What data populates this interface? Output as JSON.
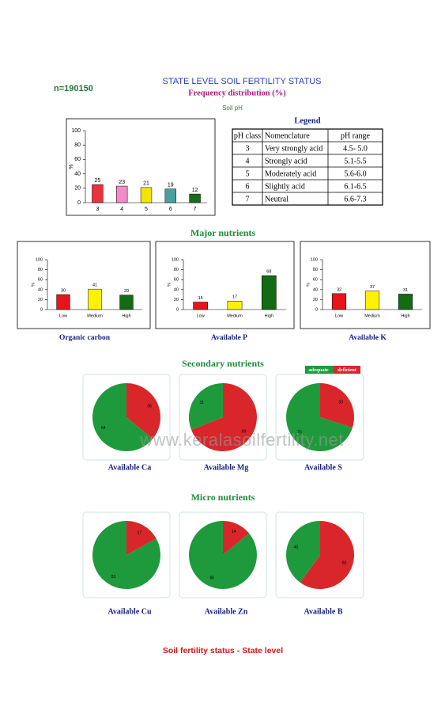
{
  "header": {
    "n": "n=190150",
    "title": "STATE LEVEL SOIL FERTILITY STATUS",
    "subtitle": "Frequency distribution (%)"
  },
  "legend": {
    "title": "Legend",
    "columns": [
      "pH class",
      "Nomenclature",
      "pH range"
    ],
    "rows": [
      [
        "3",
        "Very strongly acid",
        "4.5- 5.0"
      ],
      [
        "4",
        "Strongly acid",
        "5.1-5.5"
      ],
      [
        "5",
        "Moderately acid",
        "5.6-6.0"
      ],
      [
        "6",
        "Slightly acid",
        "6.1-6.5"
      ],
      [
        "7",
        "Neutral",
        "6.6-7.3"
      ]
    ]
  },
  "sections": [
    "Major nutrients",
    "Secondary nutrients",
    "Micro nutrients"
  ],
  "pie_legend": {
    "items": [
      "adequate",
      "deficient"
    ],
    "colors": [
      "#1e9a3c",
      "#d9262a"
    ]
  },
  "watermark": "www.keralasoilfertility.net",
  "footer": "Soil fertility status - State level",
  "chart_data": [
    {
      "type": "bar",
      "title": "Soil pH",
      "ylabel": "%",
      "categories": [
        "3",
        "4",
        "5",
        "6",
        "7"
      ],
      "values": [
        25,
        23,
        21,
        19,
        12
      ],
      "colors": [
        "#e8323c",
        "#f08cc8",
        "#f2e600",
        "#4aa0a0",
        "#1a6b1a"
      ],
      "ylim": [
        0,
        100
      ],
      "yticks": [
        0,
        20,
        40,
        60,
        80,
        100
      ]
    },
    {
      "type": "bar",
      "title": "Organic carbon",
      "ylabel": "%",
      "categories": [
        "Low",
        "Medium",
        "High"
      ],
      "values": [
        30,
        41,
        29
      ],
      "colors": [
        "#e8141a",
        "#fff200",
        "#136b13"
      ],
      "ylim": [
        0,
        100
      ],
      "yticks": [
        0,
        20,
        40,
        60,
        80,
        100
      ]
    },
    {
      "type": "bar",
      "title": "Available  P",
      "ylabel": "%",
      "categories": [
        "Low",
        "Medium",
        "High"
      ],
      "values": [
        15,
        17,
        68
      ],
      "colors": [
        "#e8141a",
        "#fff200",
        "#136b13"
      ],
      "ylim": [
        0,
        100
      ],
      "yticks": [
        0,
        20,
        40,
        60,
        80,
        100
      ]
    },
    {
      "type": "bar",
      "title": "Available  K",
      "ylabel": "%",
      "categories": [
        "Low",
        "Medium",
        "High"
      ],
      "values": [
        32,
        37,
        31
      ],
      "colors": [
        "#e8141a",
        "#fff200",
        "#136b13"
      ],
      "ylim": [
        0,
        100
      ],
      "yticks": [
        0,
        20,
        40,
        60,
        80,
        100
      ]
    },
    {
      "type": "pie",
      "title": "Available  Ca",
      "values": [
        64,
        36
      ]
    },
    {
      "type": "pie",
      "title": "Available  Mg",
      "values": [
        31,
        69
      ]
    },
    {
      "type": "pie",
      "title": "Available  S",
      "values": [
        70,
        30
      ]
    },
    {
      "type": "pie",
      "title": "Available Cu",
      "values": [
        83,
        17
      ]
    },
    {
      "type": "pie",
      "title": "Available  Zn",
      "values": [
        86,
        14
      ]
    },
    {
      "type": "pie",
      "title": "Available  B",
      "values": [
        40,
        60
      ]
    }
  ]
}
